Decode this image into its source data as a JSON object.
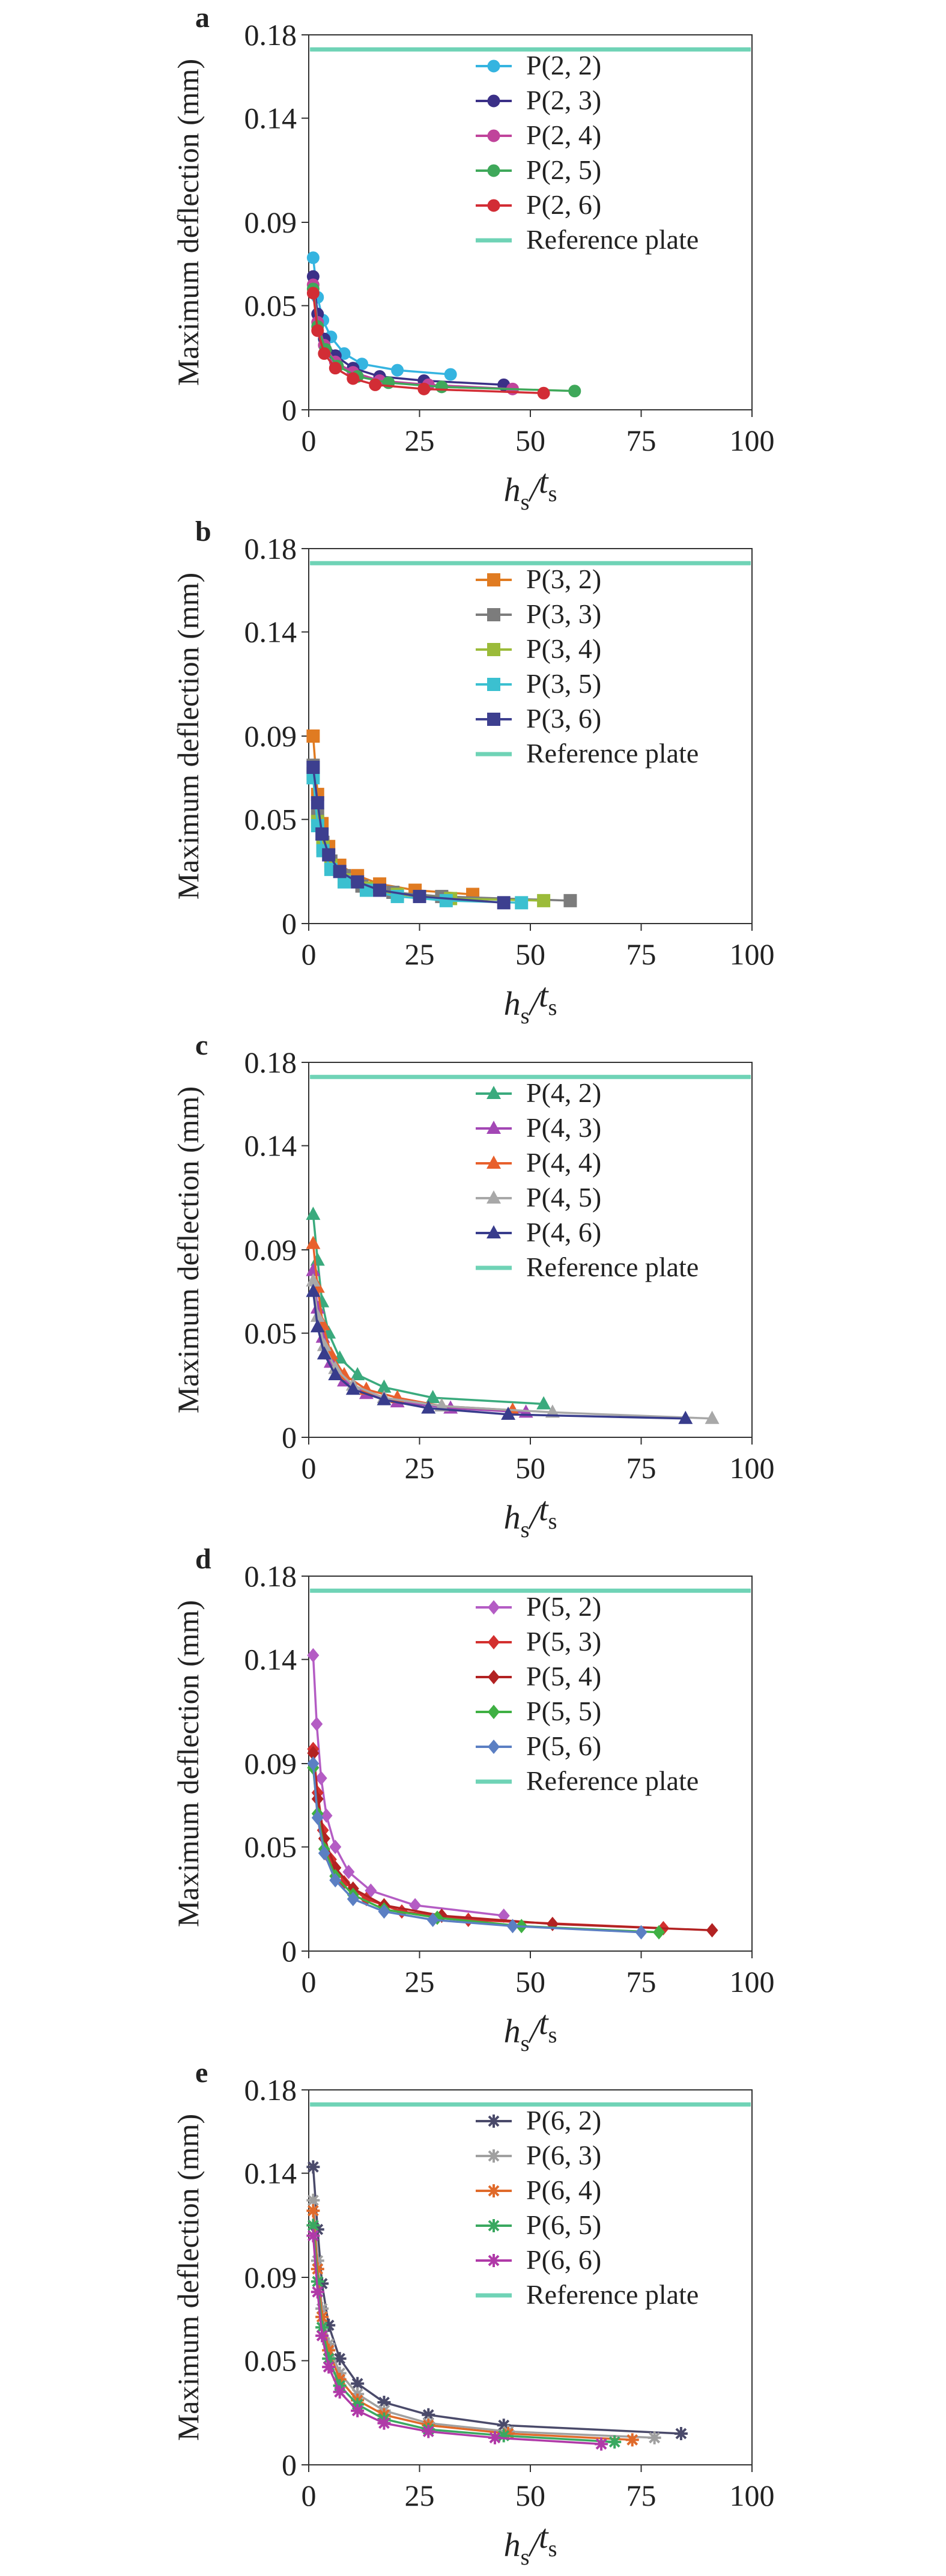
{
  "chart_data": [
    {
      "type": "line",
      "panel": "a",
      "ylabel": "Maximum deflection (mm)",
      "xlabel": "h_s/t_s",
      "xlim": [
        0,
        100
      ],
      "ylim": [
        0,
        0.18
      ],
      "xticks": [
        0,
        25,
        50,
        75,
        100
      ],
      "yticks": [
        0,
        0.05,
        0.09,
        0.14,
        0.18
      ],
      "ytick_labels": [
        "0",
        "0.05",
        "0.09",
        "0.14",
        "0.18"
      ],
      "legend_position": "top-right",
      "reference": {
        "name": "Reference plate",
        "value": 0.173,
        "color": "#6fd3b6"
      },
      "series": [
        {
          "name": "P(2, 2)",
          "color": "#35b4e0",
          "marker": "circle",
          "x": [
            1.0,
            2.0,
            3.2,
            5.0,
            8.0,
            12.0,
            20.0,
            32.0
          ],
          "y": [
            0.073,
            0.054,
            0.043,
            0.035,
            0.027,
            0.022,
            0.019,
            0.017
          ]
        },
        {
          "name": "P(2, 3)",
          "color": "#3b3087",
          "marker": "circle",
          "x": [
            1.0,
            2.0,
            3.5,
            6.0,
            10.0,
            16.0,
            26.0,
            44.0
          ],
          "y": [
            0.064,
            0.046,
            0.034,
            0.026,
            0.02,
            0.016,
            0.014,
            0.012
          ]
        },
        {
          "name": "P(2, 4)",
          "color": "#c0449b",
          "marker": "circle",
          "x": [
            1.0,
            2.0,
            3.5,
            6.0,
            10.0,
            16.0,
            27.0,
            46.0
          ],
          "y": [
            0.06,
            0.042,
            0.031,
            0.023,
            0.018,
            0.014,
            0.012,
            0.01
          ]
        },
        {
          "name": "P(2, 5)",
          "color": "#3fa85a",
          "marker": "circle",
          "x": [
            1.0,
            2.0,
            3.8,
            6.5,
            11.0,
            18.0,
            30.0,
            60.0
          ],
          "y": [
            0.058,
            0.04,
            0.029,
            0.021,
            0.016,
            0.013,
            0.011,
            0.009
          ]
        },
        {
          "name": "P(2, 6)",
          "color": "#d22d35",
          "marker": "circle",
          "x": [
            1.0,
            2.0,
            3.5,
            6.0,
            10.0,
            15.0,
            26.0,
            53.0
          ],
          "y": [
            0.056,
            0.038,
            0.027,
            0.02,
            0.015,
            0.012,
            0.01,
            0.008
          ]
        }
      ]
    },
    {
      "type": "line",
      "panel": "b",
      "ylabel": "Maximum deflection (mm)",
      "xlabel": "h_s/t_s",
      "xlim": [
        0,
        100
      ],
      "ylim": [
        0,
        0.18
      ],
      "xticks": [
        0,
        25,
        50,
        75,
        100
      ],
      "yticks": [
        0,
        0.05,
        0.09,
        0.14,
        0.18
      ],
      "ytick_labels": [
        "0",
        "0.05",
        "0.09",
        "0.14",
        "0.18"
      ],
      "legend_position": "top-right",
      "reference": {
        "name": "Reference plate",
        "value": 0.173,
        "color": "#6fd3b6"
      },
      "series": [
        {
          "name": "P(3, 2)",
          "color": "#e07b21",
          "marker": "square",
          "x": [
            1.0,
            2.0,
            3.0,
            4.5,
            7.0,
            11.0,
            16.0,
            24.0,
            37.0
          ],
          "y": [
            0.09,
            0.062,
            0.048,
            0.037,
            0.028,
            0.023,
            0.019,
            0.016,
            0.014
          ]
        },
        {
          "name": "P(3, 3)",
          "color": "#7c7c7c",
          "marker": "square",
          "x": [
            1.0,
            2.0,
            3.2,
            5.0,
            8.0,
            12.0,
            19.0,
            30.0,
            59.0
          ],
          "y": [
            0.076,
            0.052,
            0.039,
            0.03,
            0.023,
            0.018,
            0.015,
            0.013,
            0.011
          ]
        },
        {
          "name": "P(3, 4)",
          "color": "#9bbb3a",
          "marker": "square",
          "x": [
            1.0,
            2.0,
            3.2,
            5.0,
            8.0,
            13.0,
            20.0,
            32.0,
            53.0
          ],
          "y": [
            0.072,
            0.049,
            0.037,
            0.028,
            0.021,
            0.017,
            0.014,
            0.012,
            0.011
          ]
        },
        {
          "name": "P(3, 5)",
          "color": "#3bc0d0",
          "marker": "square",
          "x": [
            1.0,
            2.0,
            3.2,
            5.0,
            8.0,
            13.0,
            20.0,
            31.0,
            48.0
          ],
          "y": [
            0.07,
            0.047,
            0.035,
            0.026,
            0.02,
            0.016,
            0.013,
            0.011,
            0.01
          ]
        },
        {
          "name": "P(3, 6)",
          "color": "#3d3f8f",
          "marker": "square",
          "x": [
            1.0,
            2.0,
            3.0,
            4.5,
            7.0,
            11.0,
            16.0,
            25.0,
            44.0
          ],
          "y": [
            0.075,
            0.058,
            0.043,
            0.033,
            0.025,
            0.02,
            0.016,
            0.013,
            0.01
          ]
        }
      ]
    },
    {
      "type": "line",
      "panel": "c",
      "ylabel": "Maximum deflection (mm)",
      "xlabel": "h_s/t_s",
      "xlim": [
        0,
        100
      ],
      "ylim": [
        0,
        0.18
      ],
      "xticks": [
        0,
        25,
        50,
        75,
        100
      ],
      "yticks": [
        0,
        0.05,
        0.09,
        0.14,
        0.18
      ],
      "ytick_labels": [
        "0",
        "0.05",
        "0.09",
        "0.14",
        "0.18"
      ],
      "legend_position": "top-right",
      "reference": {
        "name": "Reference plate",
        "value": 0.173,
        "color": "#6fd3b6"
      },
      "series": [
        {
          "name": "P(4, 2)",
          "color": "#3aaa7d",
          "marker": "triangle",
          "x": [
            1.0,
            2.0,
            3.0,
            4.5,
            7.0,
            11.0,
            17.0,
            28.0,
            53.0
          ],
          "y": [
            0.107,
            0.085,
            0.065,
            0.05,
            0.038,
            0.03,
            0.024,
            0.019,
            0.016
          ]
        },
        {
          "name": "P(4, 3)",
          "color": "#a347b5",
          "marker": "triangle",
          "x": [
            1.0,
            2.0,
            3.2,
            5.0,
            8.0,
            13.0,
            20.0,
            32.0,
            49.0
          ],
          "y": [
            0.08,
            0.062,
            0.048,
            0.036,
            0.027,
            0.021,
            0.017,
            0.014,
            0.012
          ]
        },
        {
          "name": "P(4, 4)",
          "color": "#e8602c",
          "marker": "triangle",
          "x": [
            1.0,
            2.0,
            3.2,
            5.0,
            8.0,
            13.0,
            20.0,
            30.0,
            46.0
          ],
          "y": [
            0.093,
            0.072,
            0.054,
            0.04,
            0.03,
            0.023,
            0.019,
            0.015,
            0.013
          ]
        },
        {
          "name": "P(4, 5)",
          "color": "#a8a8a8",
          "marker": "triangle",
          "x": [
            1.0,
            2.0,
            3.5,
            6.0,
            10.0,
            17.0,
            30.0,
            55.0,
            91.0
          ],
          "y": [
            0.075,
            0.058,
            0.044,
            0.033,
            0.025,
            0.019,
            0.015,
            0.012,
            0.009
          ]
        },
        {
          "name": "P(4, 6)",
          "color": "#383c8c",
          "marker": "triangle",
          "x": [
            1.0,
            2.0,
            3.5,
            6.0,
            10.0,
            17.0,
            27.0,
            45.0,
            85.0
          ],
          "y": [
            0.07,
            0.053,
            0.04,
            0.03,
            0.023,
            0.018,
            0.014,
            0.011,
            0.009
          ]
        }
      ]
    },
    {
      "type": "line",
      "panel": "d",
      "ylabel": "Maximum deflection (mm)",
      "xlabel": "h_s/t_s",
      "xlim": [
        0,
        100
      ],
      "ylim": [
        0,
        0.18
      ],
      "xticks": [
        0,
        25,
        50,
        75,
        100
      ],
      "yticks": [
        0,
        0.05,
        0.09,
        0.14,
        0.18
      ],
      "ytick_labels": [
        "0",
        "0.05",
        "0.09",
        "0.14",
        "0.18"
      ],
      "legend_position": "top-right",
      "reference": {
        "name": "Reference plate",
        "value": 0.173,
        "color": "#6fd3b6"
      },
      "series": [
        {
          "name": "P(5, 2)",
          "color": "#b45cc4",
          "marker": "diamond",
          "x": [
            1.0,
            1.8,
            2.8,
            4.0,
            6.0,
            9.0,
            14.0,
            24.0,
            44.0
          ],
          "y": [
            0.142,
            0.109,
            0.083,
            0.065,
            0.05,
            0.038,
            0.029,
            0.022,
            0.017
          ]
        },
        {
          "name": "P(5, 3)",
          "color": "#d3302f",
          "marker": "diamond",
          "x": [
            1.0,
            2.0,
            3.2,
            5.0,
            8.0,
            13.0,
            21.0,
            36.0,
            80.0
          ],
          "y": [
            0.097,
            0.076,
            0.058,
            0.044,
            0.033,
            0.025,
            0.019,
            0.015,
            0.011
          ]
        },
        {
          "name": "P(5, 4)",
          "color": "#b22222",
          "marker": "diamond",
          "x": [
            1.0,
            2.0,
            3.5,
            6.0,
            10.0,
            17.0,
            30.0,
            55.0,
            91.0
          ],
          "y": [
            0.095,
            0.073,
            0.054,
            0.04,
            0.03,
            0.022,
            0.017,
            0.013,
            0.01
          ]
        },
        {
          "name": "P(5, 5)",
          "color": "#3fb043",
          "marker": "diamond",
          "x": [
            1.0,
            2.0,
            3.5,
            6.0,
            10.0,
            17.0,
            29.0,
            48.0,
            79.0
          ],
          "y": [
            0.088,
            0.066,
            0.049,
            0.036,
            0.027,
            0.02,
            0.016,
            0.012,
            0.009
          ]
        },
        {
          "name": "P(5, 6)",
          "color": "#5b7fc3",
          "marker": "diamond",
          "x": [
            1.0,
            2.0,
            3.5,
            6.0,
            10.0,
            17.0,
            28.0,
            46.0,
            75.0
          ],
          "y": [
            0.09,
            0.064,
            0.047,
            0.034,
            0.025,
            0.019,
            0.015,
            0.012,
            0.009
          ]
        }
      ]
    },
    {
      "type": "line",
      "panel": "e",
      "ylabel": "Maximum deflection (mm)",
      "xlabel": "h_s/t_s",
      "xlim": [
        0,
        100
      ],
      "ylim": [
        0,
        0.18
      ],
      "xticks": [
        0,
        25,
        50,
        75,
        100
      ],
      "yticks": [
        0,
        0.05,
        0.09,
        0.14,
        0.18
      ],
      "ytick_labels": [
        "0",
        "0.05",
        "0.09",
        "0.14",
        "0.18"
      ],
      "legend_position": "top-right",
      "reference": {
        "name": "Reference plate",
        "value": 0.173,
        "color": "#6fd3b6"
      },
      "series": [
        {
          "name": "P(6, 2)",
          "color": "#4a4a6a",
          "marker": "star",
          "x": [
            1.0,
            2.0,
            3.0,
            4.5,
            7.0,
            11.0,
            17.0,
            27.0,
            44.0,
            84.0
          ],
          "y": [
            0.143,
            0.113,
            0.087,
            0.067,
            0.051,
            0.039,
            0.03,
            0.024,
            0.019,
            0.015
          ]
        },
        {
          "name": "P(6, 3)",
          "color": "#a0a0a0",
          "marker": "star",
          "x": [
            1.0,
            2.0,
            3.0,
            4.5,
            7.0,
            11.0,
            17.0,
            27.0,
            45.0,
            78.0
          ],
          "y": [
            0.127,
            0.098,
            0.075,
            0.058,
            0.044,
            0.034,
            0.026,
            0.02,
            0.016,
            0.013
          ]
        },
        {
          "name": "P(6, 4)",
          "color": "#e06a2a",
          "marker": "star",
          "x": [
            1.0,
            2.0,
            3.0,
            4.5,
            7.0,
            11.0,
            17.0,
            27.0,
            45.0,
            73.0
          ],
          "y": [
            0.122,
            0.094,
            0.071,
            0.055,
            0.041,
            0.031,
            0.024,
            0.019,
            0.015,
            0.012
          ]
        },
        {
          "name": "P(6, 5)",
          "color": "#3aa860",
          "marker": "star",
          "x": [
            1.0,
            2.0,
            3.0,
            4.5,
            7.0,
            11.0,
            17.0,
            27.0,
            44.0,
            69.0
          ],
          "y": [
            0.115,
            0.088,
            0.066,
            0.051,
            0.038,
            0.029,
            0.022,
            0.017,
            0.014,
            0.011
          ]
        },
        {
          "name": "P(6, 6)",
          "color": "#b03aa8",
          "marker": "star",
          "x": [
            1.0,
            2.0,
            3.0,
            4.5,
            7.0,
            11.0,
            17.0,
            27.0,
            42.0,
            66.0
          ],
          "y": [
            0.11,
            0.083,
            0.062,
            0.047,
            0.035,
            0.026,
            0.02,
            0.016,
            0.013,
            0.01
          ]
        }
      ]
    }
  ]
}
